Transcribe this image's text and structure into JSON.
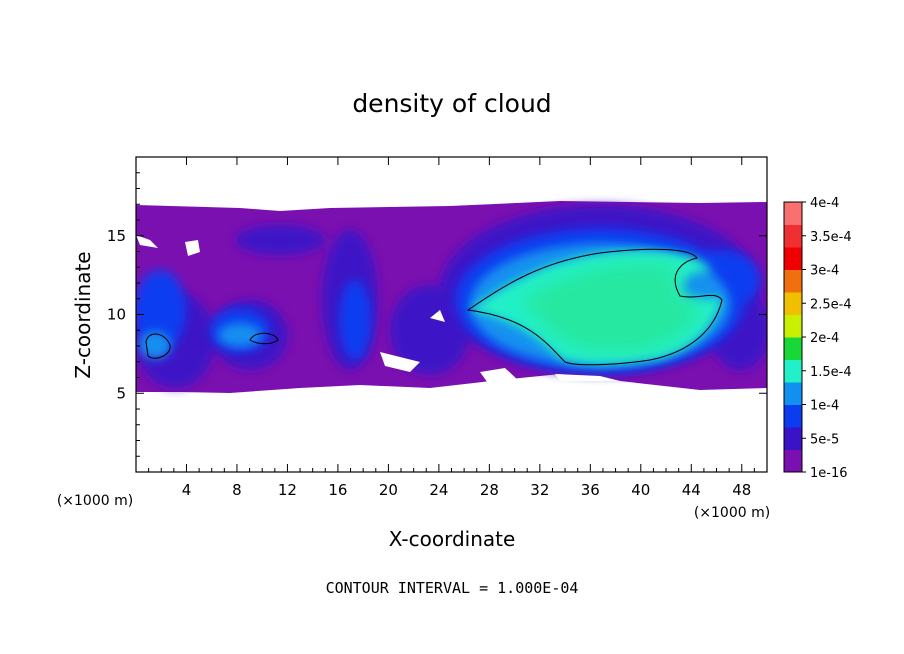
{
  "chart_data": {
    "type": "heatmap",
    "title": "density of cloud",
    "xlabel": "X-coordinate",
    "ylabel": "Z-coordinate",
    "x_unit_label": "(×1000 m)",
    "y_unit_label": "(×1000 m)",
    "xlim": [
      0,
      50
    ],
    "ylim": [
      0,
      20
    ],
    "x_ticks": [
      4,
      8,
      12,
      16,
      20,
      24,
      28,
      32,
      36,
      40,
      44,
      48
    ],
    "y_ticks": [
      5,
      10,
      15
    ],
    "footer": "CONTOUR INTERVAL = 1.000E-04",
    "colorbar": {
      "labels": [
        "1e-16",
        "5e-5",
        "1e-4",
        "1.5e-4",
        "2e-4",
        "2.5e-4",
        "3e-4",
        "3.5e-4",
        "4e-4"
      ],
      "colors": [
        "#7b10b0",
        "#3a12c8",
        "#0a3cf0",
        "#1290f0",
        "#22f0c8",
        "#18d838",
        "#c8f000",
        "#f0c000",
        "#f07010",
        "#f00000",
        "#f03030",
        "#f87070"
      ]
    },
    "cloud_extent_z": [
      5.2,
      17.0
    ],
    "max_region": {
      "x": [
        28,
        44
      ],
      "z": [
        7,
        14
      ],
      "level": "1.5e-4 to 2e-4"
    }
  }
}
